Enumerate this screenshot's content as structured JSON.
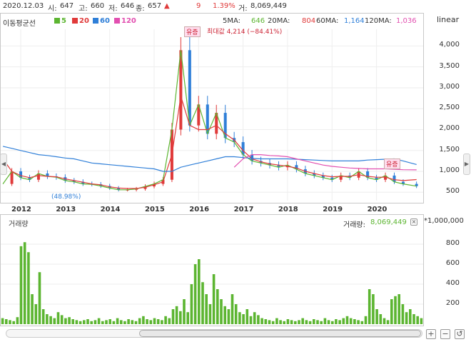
{
  "info": {
    "date": "2020.12.03",
    "open_label": "시:",
    "open": "647",
    "high_label": "고:",
    "high": "660",
    "low_label": "저:",
    "low": "646",
    "close_label": "종:",
    "close": "657",
    "up_icon": "▲",
    "change": "9",
    "change_pct": "1.39%",
    "volume_label": "거:",
    "volume": "8,069,449"
  },
  "ma": {
    "title": "이동평균선",
    "legend": [
      {
        "label": "5",
        "color": "#5cb531"
      },
      {
        "label": "20",
        "color": "#e03a3a"
      },
      {
        "label": "60",
        "color": "#2f7fd8"
      },
      {
        "label": "120",
        "color": "#e24fb0"
      }
    ],
    "ma5_label": "5MA:",
    "ma5": "646",
    "ma20_label": "20MA:",
    "ma20": "804",
    "ma60_label": "60MA:",
    "ma60": "1,164",
    "ma120_label": "120MA:",
    "ma120": "1,036",
    "scale": "linear"
  },
  "colors": {
    "up": "#e03a3a",
    "down": "#2f7fd8",
    "volume": "#5cb531",
    "ma5": "#5cb531",
    "ma20": "#e03a3a",
    "ma60": "#2f7fd8",
    "ma120": "#e24fb0"
  },
  "annotations": {
    "max_label": "최대값 4,214 (−84.41%)",
    "min_label": "(48.98%)",
    "rights_issue": "유증",
    "volume_axis_label": "거래량:",
    "volume_value": "8,069,449",
    "volume_unit": "*1,000,000",
    "volume_panel_title": "거래량"
  },
  "chart_data": [
    {
      "type": "line",
      "title": "",
      "yscale": "linear",
      "ylim": [
        300,
        4400
      ],
      "yticks": [
        500,
        1000,
        1500,
        2000,
        2500,
        3000,
        3500,
        4000
      ],
      "ytick_labels": [
        "500",
        "1,000",
        "1,500",
        "2,000",
        "2,500",
        "3,000",
        "3,500",
        "4,000"
      ],
      "x_ticks": [
        "2012",
        "2013",
        "2014",
        "2015",
        "2016",
        "2017",
        "2018",
        "2019",
        "2020"
      ],
      "x": [
        2011.6,
        2011.8,
        2012.0,
        2012.2,
        2012.4,
        2012.6,
        2012.8,
        2013.0,
        2013.2,
        2013.4,
        2013.6,
        2013.8,
        2014.0,
        2014.2,
        2014.4,
        2014.6,
        2014.8,
        2015.0,
        2015.2,
        2015.4,
        2015.6,
        2015.8,
        2016.0,
        2016.2,
        2016.4,
        2016.6,
        2016.8,
        2017.0,
        2017.2,
        2017.4,
        2017.6,
        2017.8,
        2018.0,
        2018.2,
        2018.4,
        2018.6,
        2018.8,
        2019.0,
        2019.2,
        2019.4,
        2019.6,
        2019.8,
        2020.0,
        2020.2,
        2020.4,
        2020.6,
        2020.9
      ],
      "series": [
        {
          "name": "5",
          "values": [
            700,
            1000,
            850,
            800,
            950,
            880,
            860,
            780,
            750,
            700,
            690,
            650,
            600,
            560,
            560,
            580,
            640,
            700,
            800,
            2000,
            3900,
            2100,
            2600,
            1900,
            2400,
            1800,
            1700,
            1400,
            1250,
            1200,
            1150,
            1100,
            1150,
            1050,
            950,
            900,
            850,
            800,
            900,
            850,
            1000,
            850,
            800,
            900,
            750,
            700,
            646
          ]
        },
        {
          "name": "20",
          "values": [
            1300,
            1000,
            900,
            850,
            900,
            880,
            870,
            820,
            780,
            740,
            700,
            680,
            630,
            600,
            590,
            590,
            620,
            680,
            750,
            1400,
            2800,
            2100,
            2000,
            2000,
            2100,
            1900,
            1750,
            1500,
            1300,
            1230,
            1180,
            1150,
            1120,
            1080,
            1000,
            950,
            900,
            870,
            880,
            880,
            920,
            880,
            860,
            860,
            800,
            780,
            804
          ]
        },
        {
          "name": "60",
          "values": [
            1600,
            1550,
            1500,
            1450,
            1400,
            1380,
            1350,
            1320,
            1300,
            1250,
            1200,
            1180,
            1160,
            1140,
            1120,
            1100,
            1080,
            1060,
            1000,
            1000,
            1100,
            1150,
            1200,
            1250,
            1300,
            1350,
            1350,
            1330,
            1310,
            1300,
            1300,
            1300,
            1300,
            1290,
            1280,
            1270,
            1260,
            1250,
            1250,
            1250,
            1250,
            1270,
            1280,
            1290,
            1300,
            1250,
            1164
          ]
        },
        {
          "name": "120",
          "values": [
            null,
            null,
            null,
            null,
            null,
            null,
            null,
            null,
            null,
            null,
            null,
            null,
            null,
            null,
            null,
            null,
            null,
            null,
            null,
            null,
            null,
            null,
            null,
            null,
            null,
            null,
            1100,
            1300,
            1400,
            1400,
            1380,
            1370,
            1350,
            1300,
            1250,
            1200,
            1150,
            1120,
            1100,
            1080,
            1070,
            1060,
            1060,
            1060,
            1050,
            1040,
            1036
          ]
        }
      ]
    },
    {
      "type": "bar",
      "title": "",
      "ylim": [
        0,
        950
      ],
      "yticks": [
        200,
        400,
        600,
        800
      ],
      "ytick_labels": [
        "200",
        "400",
        "600",
        "800"
      ],
      "values": [
        60,
        50,
        40,
        30,
        70,
        780,
        820,
        720,
        300,
        200,
        520,
        150,
        100,
        80,
        60,
        120,
        90,
        60,
        70,
        50,
        40,
        30,
        40,
        50,
        30,
        40,
        60,
        30,
        40,
        50,
        30,
        60,
        40,
        30,
        50,
        40,
        30,
        60,
        80,
        50,
        40,
        60,
        50,
        40,
        80,
        60,
        150,
        180,
        130,
        250,
        120,
        400,
        600,
        650,
        420,
        300,
        200,
        500,
        350,
        250,
        180,
        150,
        300,
        200,
        120,
        100,
        150,
        80,
        120,
        90,
        60,
        50,
        40,
        30,
        60,
        40,
        30,
        50,
        40,
        30,
        40,
        60,
        40,
        30,
        50,
        40,
        30,
        60,
        40,
        30,
        50,
        40,
        60,
        80,
        60,
        50,
        40,
        30,
        80,
        350,
        300,
        150,
        100,
        60,
        40,
        250,
        280,
        300,
        200,
        120,
        150,
        100,
        80,
        60
      ]
    }
  ],
  "scroll": {
    "zoom_in": "+",
    "zoom_out": "−",
    "reset": "↺"
  }
}
